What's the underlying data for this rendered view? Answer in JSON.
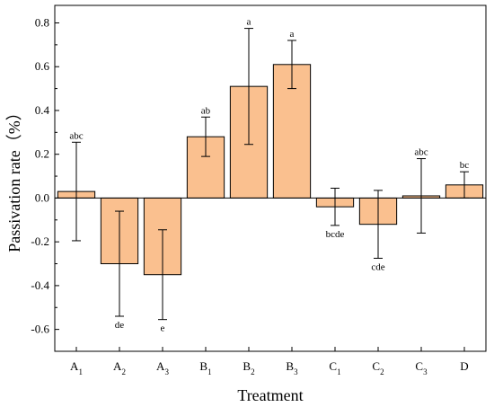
{
  "chart_data": {
    "type": "bar",
    "title": "",
    "xlabel": "Treatment",
    "ylabel": "Passivation rate（%）",
    "ylim": [
      -0.7,
      0.88
    ],
    "yticks": [
      "-0.6",
      "-0.4",
      "-0.2",
      "0.0",
      "0.2",
      "0.4",
      "0.6",
      "0.8"
    ],
    "ytick_values": [
      -0.6,
      -0.4,
      -0.2,
      0.0,
      0.2,
      0.4,
      0.6,
      0.8
    ],
    "grid": false,
    "legend": "none",
    "bar_color": "#fac08f",
    "categories": [
      {
        "base": "A",
        "sub": "1"
      },
      {
        "base": "A",
        "sub": "2"
      },
      {
        "base": "A",
        "sub": "3"
      },
      {
        "base": "B",
        "sub": "1"
      },
      {
        "base": "B",
        "sub": "2"
      },
      {
        "base": "B",
        "sub": "3"
      },
      {
        "base": "C",
        "sub": "1"
      },
      {
        "base": "C",
        "sub": "2"
      },
      {
        "base": "C",
        "sub": "3"
      },
      {
        "base": "D",
        "sub": ""
      }
    ],
    "values": [
      0.03,
      -0.3,
      -0.35,
      0.28,
      0.51,
      0.61,
      -0.04,
      -0.12,
      0.01,
      0.06
    ],
    "error": [
      0.225,
      0.24,
      0.205,
      0.09,
      0.265,
      0.11,
      0.085,
      0.155,
      0.17,
      0.06
    ],
    "significance": [
      "abc",
      "de",
      "e",
      "ab",
      "a",
      "a",
      "bcde",
      "cde",
      "abc",
      "bc"
    ]
  }
}
